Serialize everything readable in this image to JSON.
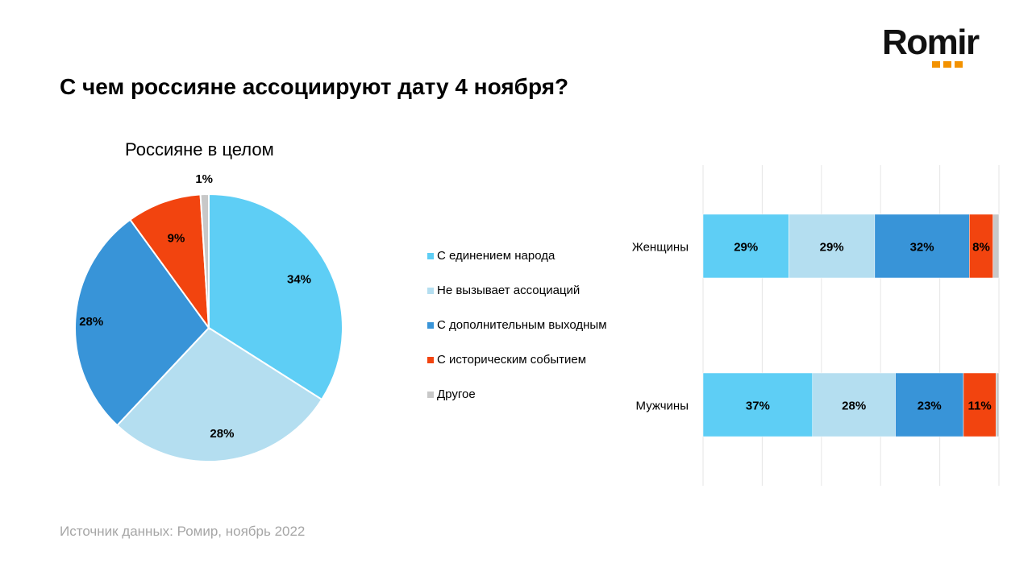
{
  "brand": {
    "name": "Romir",
    "accent": "#f39200"
  },
  "title": "С чем россияне ассоциируют дату 4 ноября?",
  "source": "Источник данных: Ромир, ноябрь 2022",
  "legend": [
    {
      "label": "С единением  народа",
      "color": "#5ecef5"
    },
    {
      "label": "Не вызывает ассоциаций",
      "color": "#b4def0"
    },
    {
      "label": "С дополнительным  выходным",
      "color": "#3894d8"
    },
    {
      "label": "С историческим событием",
      "color": "#f2440f"
    },
    {
      "label": "Другое",
      "color": "#c8c8c8"
    }
  ],
  "chart_data": [
    {
      "type": "pie",
      "title": "Россияне в целом",
      "categories": [
        "С единением  народа",
        "Не вызывает ассоциаций",
        "С дополнительным  выходным",
        "С историческим событием",
        "Другое"
      ],
      "values": [
        34,
        28,
        28,
        9,
        1
      ],
      "labels": [
        "34%",
        "28%",
        "28%",
        "9%",
        "1%"
      ],
      "colors": [
        "#5ecef5",
        "#b4def0",
        "#3894d8",
        "#f2440f",
        "#c8c8c8"
      ]
    },
    {
      "type": "bar",
      "orientation": "horizontal",
      "stacked": true,
      "categories": [
        "Женщины",
        "Мужчины"
      ],
      "series": [
        {
          "name": "С единением  народа",
          "color": "#5ecef5",
          "values": [
            29,
            37
          ],
          "labels": [
            "29%",
            "37%"
          ]
        },
        {
          "name": "Не вызывает ассоциаций",
          "color": "#b4def0",
          "values": [
            29,
            28
          ],
          "labels": [
            "29%",
            "28%"
          ]
        },
        {
          "name": "С дополнительным  выходным",
          "color": "#3894d8",
          "values": [
            32,
            23
          ],
          "labels": [
            "32%",
            "23%"
          ]
        },
        {
          "name": "С историческим событием",
          "color": "#f2440f",
          "values": [
            8,
            11
          ],
          "labels": [
            "8%",
            "11%"
          ]
        },
        {
          "name": "Другое",
          "color": "#c8c8c8",
          "values": [
            2,
            1
          ],
          "labels": [
            "",
            ""
          ]
        }
      ],
      "xlim": [
        0,
        100
      ],
      "grid": true
    }
  ]
}
